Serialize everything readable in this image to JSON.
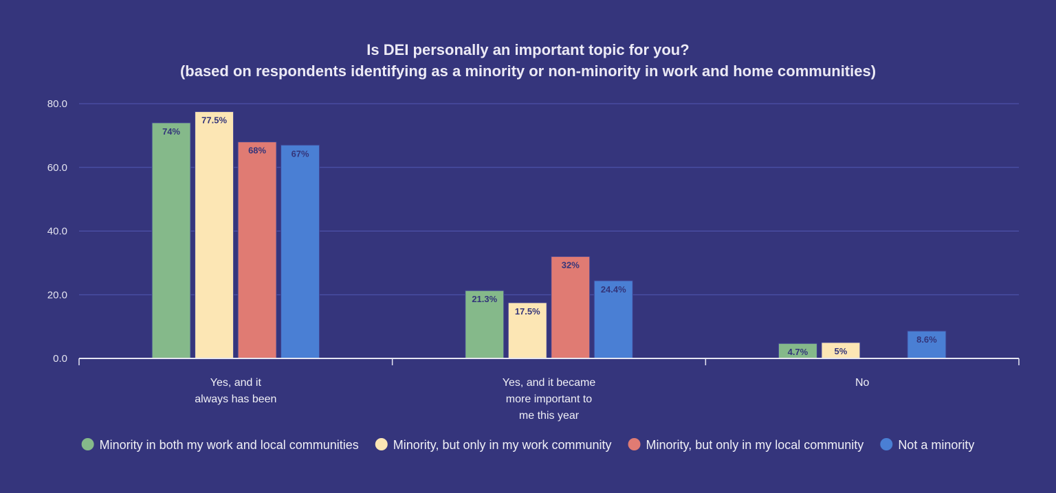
{
  "chart_data": {
    "type": "bar",
    "title": "Is DEI personally an important topic for you?",
    "subtitle": "(based on respondents identifying as a minority or non-minority in work and home communities)",
    "categories": [
      [
        "Yes, and it",
        "always has been"
      ],
      [
        "Yes, and it became",
        "more important to",
        "me this year"
      ],
      [
        "No"
      ]
    ],
    "ylim": [
      0,
      80
    ],
    "yticks": [
      "0.0",
      "20.0",
      "40.0",
      "60.0",
      "80.0"
    ],
    "grid": true,
    "legend_placement": "bottom",
    "series": [
      {
        "name": "Minority in both my work and local communities",
        "color": "#85b98a",
        "values": [
          74,
          21.3,
          4.7
        ],
        "labels": [
          "74%",
          "21.3%",
          "4.7%"
        ]
      },
      {
        "name": "Minority, but only in my work community",
        "color": "#fce6b4",
        "values": [
          77.5,
          17.5,
          5
        ],
        "labels": [
          "77.5%",
          "17.5%",
          "5%"
        ]
      },
      {
        "name": "Minority, but only in my local community",
        "color": "#e07b73",
        "values": [
          68,
          32,
          null
        ],
        "labels": [
          "68%",
          "32%",
          ""
        ]
      },
      {
        "name": "Not a minority",
        "color": "#4a7fd4",
        "values": [
          67,
          24.4,
          8.6
        ],
        "labels": [
          "67%",
          "24.4%",
          "8.6%"
        ]
      }
    ]
  }
}
